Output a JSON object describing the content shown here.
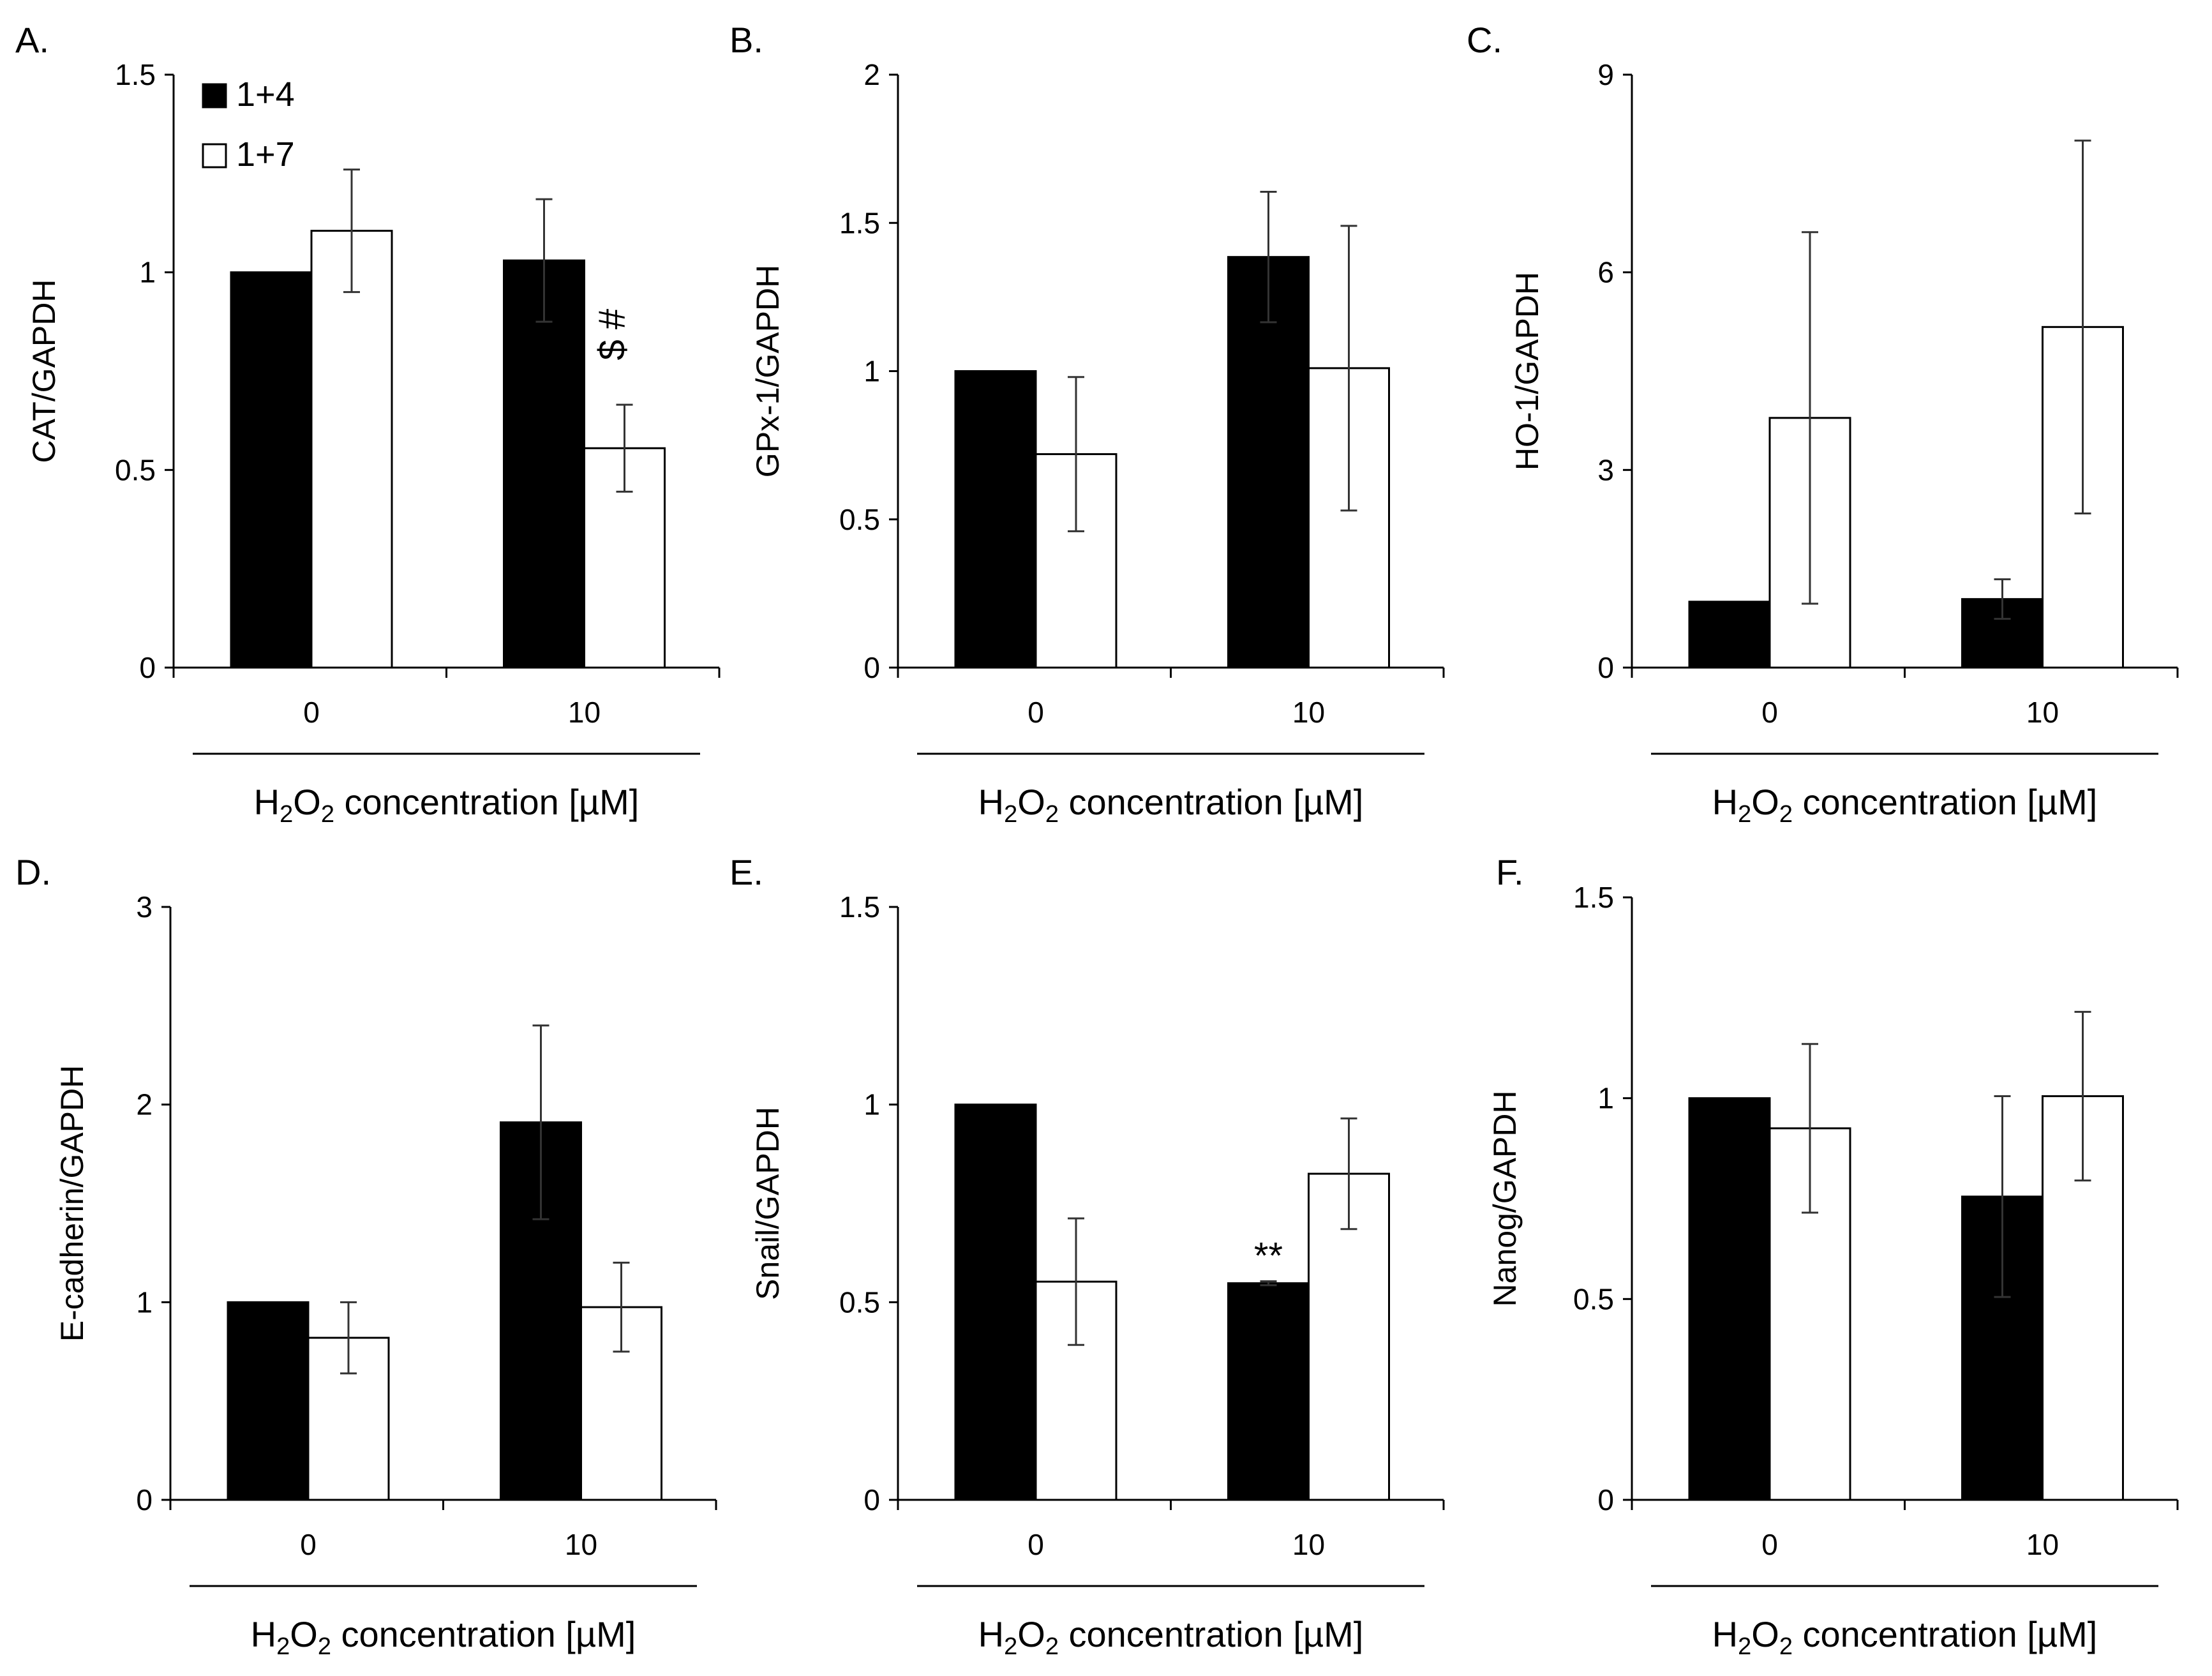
{
  "legend": {
    "items": [
      "1+4",
      "1+7"
    ],
    "colors": [
      "#000000",
      "#ffffff"
    ]
  },
  "chart_data": [
    {
      "type": "bar",
      "panel": "A.",
      "ylabel": "CAT/GAPDH",
      "xlabel": {
        "pre": "H",
        "sub1": "2",
        "mid": "O",
        "sub2": "2",
        "post": " concentration [µM]"
      },
      "categories": [
        "0",
        "10"
      ],
      "ylim": [
        0,
        1.5
      ],
      "yticks": [
        "0",
        "0.5",
        "1",
        "1.5"
      ],
      "series": [
        {
          "name": "1+4",
          "values": [
            1.0,
            1.03
          ],
          "errors": [
            0.0,
            0.155
          ]
        },
        {
          "name": "1+7",
          "values": [
            1.105,
            0.555
          ],
          "errors": [
            0.155,
            0.11
          ]
        }
      ],
      "annotations": [
        {
          "text": "$ #",
          "category": 1,
          "series": 1,
          "rotated": true
        }
      ]
    },
    {
      "type": "bar",
      "panel": "B.",
      "ylabel": "GPx-1/GAPDH",
      "xlabel": {
        "pre": "H",
        "sub1": "2",
        "mid": "O",
        "sub2": "2",
        "post": " concentration [µM]"
      },
      "categories": [
        "0",
        "10"
      ],
      "ylim": [
        0,
        2
      ],
      "yticks": [
        "0",
        "0.5",
        "1",
        "1.5",
        "2"
      ],
      "series": [
        {
          "name": "1+4",
          "values": [
            1.0,
            1.385
          ],
          "errors": [
            0.0,
            0.22
          ]
        },
        {
          "name": "1+7",
          "values": [
            0.72,
            1.01
          ],
          "errors": [
            0.26,
            0.48
          ]
        }
      ],
      "annotations": []
    },
    {
      "type": "bar",
      "panel": "C.",
      "ylabel": "HO-1/GAPDH",
      "xlabel": {
        "pre": "H",
        "sub1": "2",
        "mid": "O",
        "sub2": "2",
        "post": " concentration [µM]"
      },
      "categories": [
        "0",
        "10"
      ],
      "ylim": [
        0,
        9
      ],
      "yticks": [
        "0",
        "3",
        "6",
        "9"
      ],
      "series": [
        {
          "name": "1+4",
          "values": [
            1.0,
            1.04
          ],
          "errors": [
            0.0,
            0.3
          ]
        },
        {
          "name": "1+7",
          "values": [
            3.79,
            5.17
          ],
          "errors": [
            2.82,
            2.83
          ]
        }
      ],
      "annotations": []
    },
    {
      "type": "bar",
      "panel": "D.",
      "ylabel": "E-cadherin/GAPDH",
      "xlabel": {
        "pre": "H",
        "sub1": "2",
        "mid": "O",
        "sub2": "2",
        "post": " concentration [µM]"
      },
      "categories": [
        "0",
        "10"
      ],
      "ylim": [
        0,
        3
      ],
      "yticks": [
        "0",
        "1",
        "2",
        "3"
      ],
      "series": [
        {
          "name": "1+4",
          "values": [
            1.0,
            1.91
          ],
          "errors": [
            0.0,
            0.49
          ]
        },
        {
          "name": "1+7",
          "values": [
            0.82,
            0.975
          ],
          "errors": [
            0.18,
            0.225
          ]
        }
      ],
      "annotations": []
    },
    {
      "type": "bar",
      "panel": "E.",
      "ylabel": "Snail/GAPDH",
      "xlabel": {
        "pre": "H",
        "sub1": "2",
        "mid": "O",
        "sub2": "2",
        "post": " concentration [µM]"
      },
      "categories": [
        "0",
        "10"
      ],
      "ylim": [
        0,
        1.5
      ],
      "yticks": [
        "0",
        "0.5",
        "1",
        "1.5"
      ],
      "series": [
        {
          "name": "1+4",
          "values": [
            1.0,
            0.548
          ],
          "errors": [
            0.0,
            0.005
          ]
        },
        {
          "name": "1+7",
          "values": [
            0.552,
            0.825
          ],
          "errors": [
            0.16,
            0.14
          ]
        }
      ],
      "annotations": [
        {
          "text": "**",
          "category": 1,
          "series": 0,
          "rotated": false
        }
      ]
    },
    {
      "type": "bar",
      "panel": "F.",
      "ylabel": "Nanog/GAPDH",
      "xlabel": {
        "pre": "H",
        "sub1": "2",
        "mid": "O",
        "sub2": "2",
        "post": " concentration [µM]"
      },
      "categories": [
        "0",
        "10"
      ],
      "ylim": [
        0,
        1.5
      ],
      "yticks": [
        "0",
        "0.5",
        "1",
        "1.5"
      ],
      "series": [
        {
          "name": "1+4",
          "values": [
            1.0,
            0.755
          ],
          "errors": [
            0.0,
            0.25
          ]
        },
        {
          "name": "1+7",
          "values": [
            0.925,
            1.005
          ],
          "errors": [
            0.21,
            0.21
          ]
        }
      ],
      "annotations": []
    }
  ]
}
